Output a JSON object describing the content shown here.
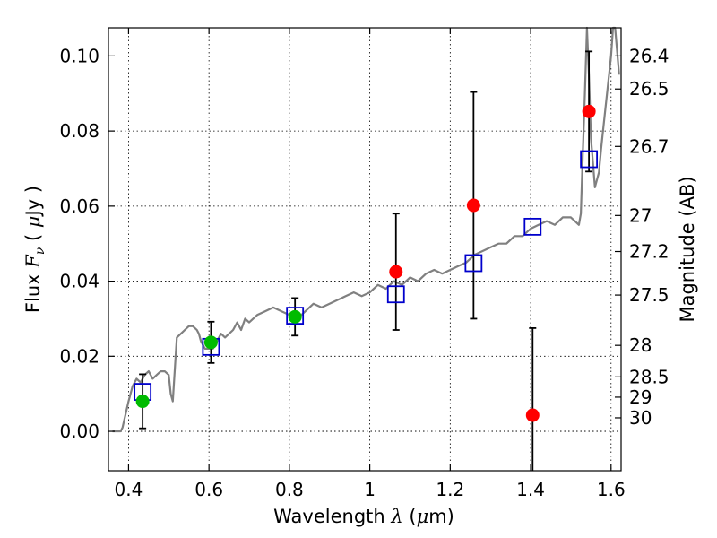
{
  "chart_data": {
    "type": "scatter",
    "xlabel": "Wavelength  λ (μm)",
    "ylabel": "Flux  F_ν  ( μJy )",
    "y2label": "Magnitude (AB)",
    "xlim": [
      0.35,
      1.625
    ],
    "ylim": [
      -0.0105,
      0.1075
    ],
    "grid": true,
    "x_ticks": [
      0.4,
      0.6,
      0.8,
      1.0,
      1.2,
      1.4,
      1.6
    ],
    "x_tick_labels": [
      "0.4",
      "0.6",
      "0.8",
      "1",
      "1.2",
      "1.4",
      "1.6"
    ],
    "y_ticks": [
      0.0,
      0.02,
      0.04,
      0.06,
      0.08,
      0.1
    ],
    "y_tick_labels": [
      "0.00",
      "0.02",
      "0.04",
      "0.06",
      "0.08",
      "0.10"
    ],
    "magnitude_ticks": [
      {
        "label": "26.4",
        "flux": 0.1
      },
      {
        "label": "26.5",
        "flux": 0.0912
      },
      {
        "label": "26.7",
        "flux": 0.0759
      },
      {
        "label": "27",
        "flux": 0.0575
      },
      {
        "label": "27.2",
        "flux": 0.0479
      },
      {
        "label": "27.5",
        "flux": 0.0363
      },
      {
        "label": "28",
        "flux": 0.0229
      },
      {
        "label": "28.5",
        "flux": 0.0145
      },
      {
        "label": "29",
        "flux": 0.0091
      },
      {
        "label": "30",
        "flux": 0.0036
      }
    ],
    "series": [
      {
        "marker": "line",
        "color": "#808080",
        "x": [
          0.36,
          0.38,
          0.385,
          0.4,
          0.41,
          0.42,
          0.43,
          0.44,
          0.45,
          0.46,
          0.47,
          0.48,
          0.49,
          0.5,
          0.505,
          0.51,
          0.52,
          0.53,
          0.54,
          0.55,
          0.56,
          0.57,
          0.575,
          0.58,
          0.59,
          0.6,
          0.61,
          0.62,
          0.63,
          0.64,
          0.65,
          0.66,
          0.67,
          0.68,
          0.69,
          0.7,
          0.72,
          0.74,
          0.76,
          0.78,
          0.8,
          0.82,
          0.84,
          0.86,
          0.88,
          0.9,
          0.92,
          0.94,
          0.96,
          0.98,
          1.0,
          1.02,
          1.04,
          1.06,
          1.08,
          1.1,
          1.12,
          1.14,
          1.16,
          1.18,
          1.2,
          1.22,
          1.24,
          1.26,
          1.28,
          1.3,
          1.32,
          1.34,
          1.36,
          1.38,
          1.4,
          1.42,
          1.44,
          1.46,
          1.48,
          1.5,
          1.51,
          1.52,
          1.525,
          1.53,
          1.535,
          1.54,
          1.545,
          1.55,
          1.56,
          1.57,
          1.575,
          1.58,
          1.59,
          1.6,
          1.605,
          1.61,
          1.62
        ],
        "y": [
          0.0,
          0.0,
          0.001,
          0.008,
          0.012,
          0.014,
          0.013,
          0.015,
          0.016,
          0.014,
          0.015,
          0.016,
          0.016,
          0.015,
          0.01,
          0.008,
          0.025,
          0.026,
          0.027,
          0.028,
          0.028,
          0.027,
          0.026,
          0.024,
          0.022,
          0.022,
          0.022,
          0.024,
          0.026,
          0.025,
          0.026,
          0.027,
          0.029,
          0.027,
          0.03,
          0.029,
          0.031,
          0.032,
          0.033,
          0.032,
          0.031,
          0.03,
          0.032,
          0.034,
          0.033,
          0.034,
          0.035,
          0.036,
          0.037,
          0.036,
          0.037,
          0.039,
          0.038,
          0.04,
          0.039,
          0.041,
          0.04,
          0.042,
          0.043,
          0.042,
          0.043,
          0.044,
          0.045,
          0.047,
          0.048,
          0.049,
          0.05,
          0.05,
          0.052,
          0.052,
          0.054,
          0.055,
          0.056,
          0.055,
          0.057,
          0.057,
          0.056,
          0.055,
          0.058,
          0.075,
          0.09,
          0.11,
          0.095,
          0.078,
          0.065,
          0.069,
          0.075,
          0.08,
          0.09,
          0.1,
          0.108,
          0.112,
          0.095
        ]
      },
      {
        "marker": "open-square",
        "color": "#0000cc",
        "x": [
          0.435,
          0.605,
          0.814,
          1.065,
          1.258,
          1.405,
          1.545
        ],
        "y": [
          0.0105,
          0.0225,
          0.0308,
          0.0365,
          0.0448,
          0.0545,
          0.0725
        ]
      },
      {
        "marker": "filled-circle",
        "color": "#00bb00",
        "x": [
          0.435,
          0.605,
          0.814
        ],
        "y": [
          0.008,
          0.0237,
          0.0305
        ],
        "err": [
          0.0072,
          0.0055,
          0.005
        ]
      },
      {
        "marker": "filled-circle",
        "color": "#ff0000",
        "x": [
          1.065,
          1.258,
          1.405,
          1.545
        ],
        "y": [
          0.0425,
          0.0602,
          0.0043,
          0.0852
        ],
        "err": [
          0.0155,
          0.0302,
          0.0232,
          0.016
        ]
      }
    ]
  }
}
